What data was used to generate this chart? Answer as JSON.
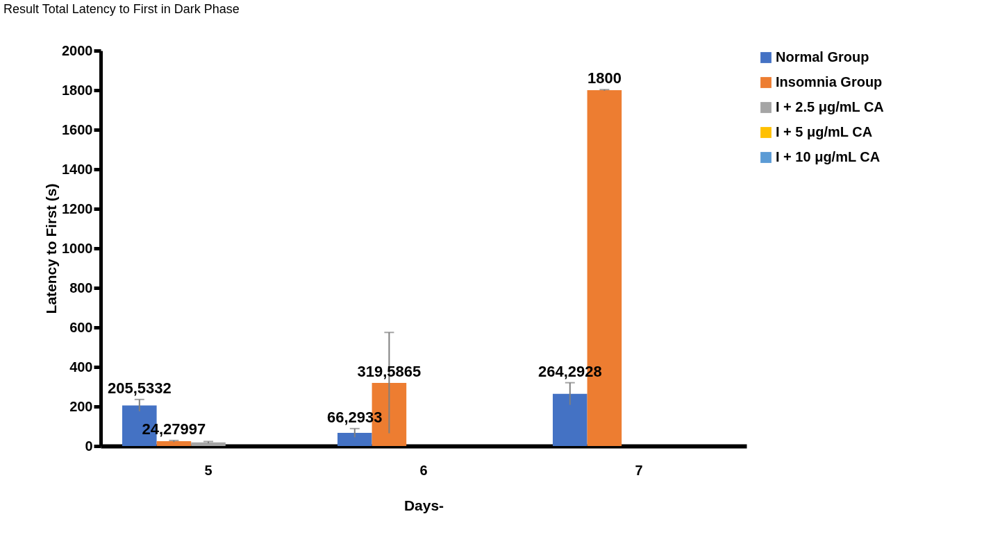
{
  "chart_data": {
    "type": "bar",
    "title": "Result Total Latency to First in Dark Phase",
    "xlabel": "Days-",
    "ylabel": "Latency to First (s)",
    "categories": [
      "5",
      "6",
      "7"
    ],
    "series": [
      {
        "name": "Normal Group",
        "color": "#4472c4",
        "values": [
          205.5332,
          66.2933,
          264.2928
        ],
        "errors": [
          30,
          22,
          56
        ],
        "value_labels": [
          "205,5332",
          "66,2933",
          "264,2928"
        ]
      },
      {
        "name": "Insomnia Group",
        "color": "#ed7d31",
        "values": [
          24.27997,
          319.5865,
          1800
        ],
        "errors": [
          4,
          255,
          3
        ],
        "value_labels": [
          "24,27997",
          "319,5865",
          "1800"
        ]
      },
      {
        "name": "I + 2.5 μg/mL CA",
        "color": "#a5a5a5",
        "values": [
          18,
          null,
          null
        ],
        "errors": [
          5,
          null,
          null
        ]
      },
      {
        "name": "I + 5 μg/mL CA",
        "color": "#ffc000",
        "values": [
          null,
          null,
          null
        ]
      },
      {
        "name": "I + 10 μg/mL CA",
        "color": "#5b9bd5",
        "values": [
          null,
          null,
          null
        ]
      }
    ],
    "ylim": [
      0,
      2000
    ],
    "yticks": [
      0,
      200,
      400,
      600,
      800,
      1000,
      1200,
      1400,
      1600,
      1800,
      2000
    ],
    "grid": false,
    "legend": "right"
  }
}
